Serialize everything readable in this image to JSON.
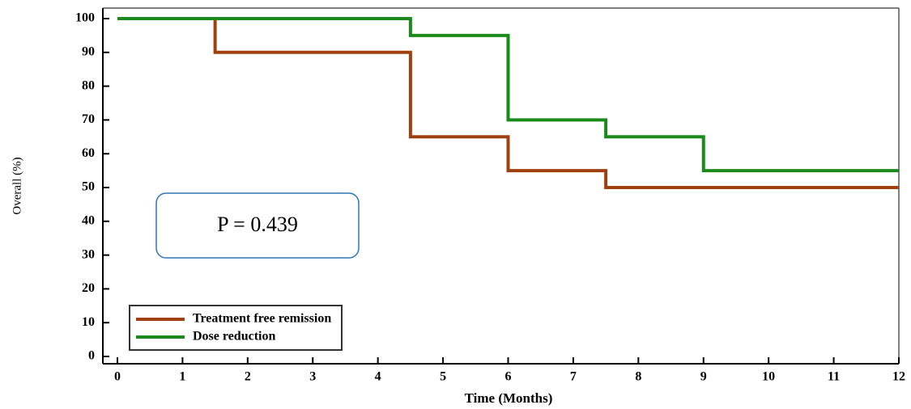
{
  "chart_data": {
    "type": "step",
    "x_label": "Time (Months)",
    "y_label": "Overall (%)",
    "annotation": "P = 0.439",
    "xlim": [
      0,
      12
    ],
    "xticks": [
      0,
      1,
      2,
      3,
      4,
      5,
      6,
      7,
      8,
      9,
      10,
      11,
      12
    ],
    "ylim": [
      0,
      100
    ],
    "yticks": [
      0,
      10,
      20,
      30,
      40,
      50,
      60,
      70,
      80,
      90,
      100
    ],
    "legend": "lower left",
    "series": [
      {
        "name": "Treatment free remission",
        "color": "#a0400f",
        "x": [
          0,
          1.5,
          4.5,
          6,
          7.5,
          12
        ],
        "values": [
          100,
          90,
          65,
          55,
          50,
          50
        ]
      },
      {
        "name": "Dose reduction",
        "color": "#1a8a1a",
        "x": [
          0,
          4.5,
          6,
          7.5,
          9,
          12
        ],
        "values": [
          100,
          95,
          70,
          65,
          55,
          55
        ]
      }
    ]
  }
}
